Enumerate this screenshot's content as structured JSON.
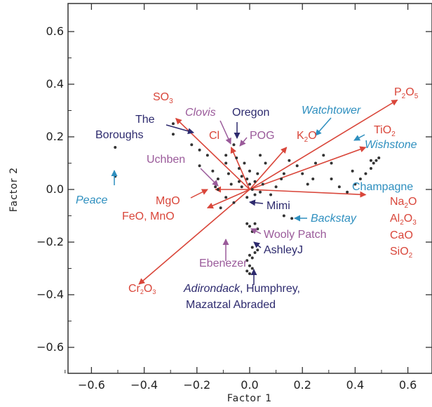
{
  "chart_data": {
    "type": "scatter",
    "xlabel": "Factor 1",
    "ylabel": "Factor 2",
    "xlim": [
      -0.72,
      0.68
    ],
    "ylim": [
      -0.72,
      0.7
    ],
    "xticks": [
      -0.6,
      -0.4,
      -0.2,
      0.0,
      0.2,
      0.4,
      0.6
    ],
    "yticks": [
      -0.6,
      -0.4,
      -0.2,
      0.0,
      0.2,
      0.4,
      0.6
    ],
    "xtick_labels": [
      "−0.6",
      "−0.4",
      "−0.2",
      "0.0",
      "0.2",
      "0.4",
      "0.6"
    ],
    "ytick_labels": [
      "−0.6",
      "−0.4",
      "−0.2",
      "0.0",
      "0.2",
      "0.4",
      "0.6"
    ],
    "grid": false,
    "colors": {
      "red": "#d9463a",
      "navy": "#2d2a6e",
      "purple": "#9a5a9a",
      "teal": "#2e8fbf",
      "point": "#333333"
    },
    "points": [
      [
        -0.51,
        0.16
      ],
      [
        -0.51,
        0.05
      ],
      [
        -0.29,
        0.25
      ],
      [
        -0.29,
        0.21
      ],
      [
        -0.22,
        0.17
      ],
      [
        -0.19,
        0.15
      ],
      [
        -0.19,
        0.09
      ],
      [
        -0.16,
        0.13
      ],
      [
        -0.14,
        0.07
      ],
      [
        -0.12,
        0.04
      ],
      [
        -0.12,
        0.0
      ],
      [
        -0.09,
        0.13
      ],
      [
        -0.09,
        0.1
      ],
      [
        -0.08,
        0.06
      ],
      [
        -0.07,
        0.02
      ],
      [
        -0.06,
        0.17
      ],
      [
        -0.05,
        0.12
      ],
      [
        -0.04,
        0.08
      ],
      [
        -0.04,
        0.03
      ],
      [
        -0.03,
        0.01
      ],
      [
        -0.03,
        0.05
      ],
      [
        -0.02,
        0.1
      ],
      [
        -0.01,
        0.04
      ],
      [
        -0.01,
        -0.03
      ],
      [
        0.0,
        0.02
      ],
      [
        0.0,
        0.07
      ],
      [
        0.01,
        0.0
      ],
      [
        0.01,
        -0.05
      ],
      [
        0.02,
        0.03
      ],
      [
        0.02,
        -0.02
      ],
      [
        0.03,
        0.06
      ],
      [
        0.04,
        -0.01
      ],
      [
        0.05,
        0.02
      ],
      [
        -0.06,
        -0.05
      ],
      [
        -0.09,
        -0.03
      ],
      [
        -0.11,
        -0.07
      ],
      [
        -0.13,
        0.01
      ],
      [
        0.02,
        -0.13
      ],
      [
        0.0,
        -0.14
      ],
      [
        0.01,
        -0.16
      ],
      [
        0.03,
        -0.15
      ],
      [
        -0.01,
        -0.13
      ],
      [
        0.01,
        -0.22
      ],
      [
        0.02,
        -0.24
      ],
      [
        0.0,
        -0.25
      ],
      [
        -0.01,
        -0.27
      ],
      [
        0.03,
        -0.23
      ],
      [
        0.01,
        -0.26
      ],
      [
        0.0,
        -0.29
      ],
      [
        -0.01,
        -0.31
      ],
      [
        0.0,
        -0.32
      ],
      [
        0.01,
        -0.3
      ],
      [
        0.13,
        -0.1
      ],
      [
        0.16,
        -0.11
      ],
      [
        0.2,
        0.06
      ],
      [
        0.22,
        0.02
      ],
      [
        0.25,
        0.1
      ],
      [
        0.28,
        0.13
      ],
      [
        0.31,
        0.04
      ],
      [
        0.34,
        0.01
      ],
      [
        0.37,
        -0.01
      ],
      [
        0.4,
        0.02
      ],
      [
        0.42,
        0.04
      ],
      [
        0.44,
        0.06
      ],
      [
        0.46,
        0.08
      ],
      [
        0.47,
        0.1
      ],
      [
        0.48,
        0.11
      ],
      [
        0.49,
        0.12
      ],
      [
        0.46,
        0.11
      ],
      [
        0.39,
        0.07
      ],
      [
        0.31,
        0.1
      ],
      [
        0.24,
        0.04
      ],
      [
        0.18,
        0.09
      ],
      [
        0.12,
        0.04
      ],
      [
        0.1,
        0.01
      ],
      [
        0.08,
        -0.02
      ],
      [
        0.13,
        0.06
      ],
      [
        0.15,
        0.11
      ],
      [
        0.06,
        0.1
      ],
      [
        0.04,
        0.13
      ]
    ],
    "vectors": [
      {
        "label": "SO3",
        "sub": "3",
        "x": -0.28,
        "y": 0.27,
        "color": "red"
      },
      {
        "label": "Cl",
        "x": -0.07,
        "y": 0.16,
        "color": "red"
      },
      {
        "label": "K2O",
        "sub": "2",
        "x": 0.14,
        "y": 0.16,
        "color": "red"
      },
      {
        "label": "P2O5",
        "x": 0.56,
        "y": 0.34,
        "color": "red"
      },
      {
        "label": "TiO2",
        "x": 0.44,
        "y": 0.16,
        "color": "red"
      },
      {
        "label": "MgO",
        "x": -0.13,
        "y": 0.0,
        "color": "red"
      },
      {
        "label": "FeO, MnO",
        "x": -0.16,
        "y": -0.07,
        "color": "red"
      },
      {
        "label": "Cr2O3",
        "x": -0.42,
        "y": -0.36,
        "color": "red"
      },
      {
        "label": "Na2O",
        "x": 0.44,
        "y": -0.02,
        "color": "red"
      }
    ],
    "annotations": {
      "so3": "SO",
      "so3_sub": "3",
      "clovis": "Clovis",
      "oregon": "Oregon",
      "watchtower": "Watchtower",
      "p2o5": "P",
      "p2o5_sub1": "2",
      "p2o5_o": "O",
      "p2o5_sub2": "5",
      "the": "The",
      "boroughs": "Boroughs",
      "cl": "Cl",
      "pog": "POG",
      "k2o_k": "K",
      "k2o_sub": "2",
      "k2o_o": "O",
      "tio2": "TiO",
      "tio2_sub": "2",
      "wishstone": "Wishstone",
      "uchben": "Uchben",
      "champagne": "Champagne",
      "peace": "Peace",
      "mgo": "MgO",
      "na2o": "Na",
      "na2o_sub": "2",
      "na2o_o": "O",
      "feo_mno": "FeO, MnO",
      "mimi": "Mimi",
      "backstay": "Backstay",
      "al2o3": "Al",
      "al2o3_sub1": "2",
      "al2o3_o": "O",
      "al2o3_sub2": "3",
      "wooly_patch": "Wooly Patch",
      "cao": "CaO",
      "ashleyj": "AshleyJ",
      "sio2": "SiO",
      "sio2_sub": "2",
      "ebenezer": "Ebenezer",
      "cr2o3": "Cr",
      "cr2o3_sub1": "2",
      "cr2o3_o": "O",
      "cr2o3_sub2": "3",
      "adirondack": "Adirondack",
      "humphrey": ", Humphrey,",
      "mazatzal": "Mazatzal Abraded"
    }
  }
}
